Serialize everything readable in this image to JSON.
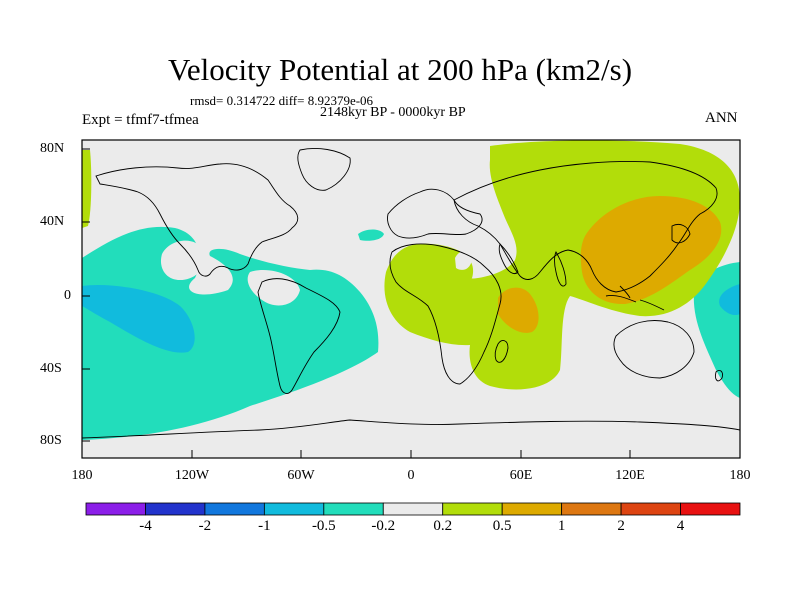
{
  "title": "Velocity Potential at 200 hPa (km2/s)",
  "stats_line": "rmsd= 0.314722 diff= 8.92379e-06",
  "period_label": "2148kyr BP - 0000kyr BP",
  "experiment_label": "Expt = tfmf7-tfmea",
  "season_label": "ANN",
  "axes": {
    "y_ticks": [
      "80N",
      "40N",
      "0",
      "40S",
      "80S"
    ],
    "x_ticks": [
      "180",
      "120W",
      "60W",
      "0",
      "60E",
      "120E",
      "180"
    ]
  },
  "colorbar": {
    "levels": [
      "-4",
      "-2",
      "-1",
      "-0.5",
      "-0.2",
      "0.2",
      "0.5",
      "1",
      "2",
      "4"
    ],
    "colors": [
      "#8b1ee8",
      "#2233cc",
      "#1177dd",
      "#11bbdd",
      "#22ddbb",
      "#ebebeb",
      "#b2dd0a",
      "#ddaa00",
      "#dd7711",
      "#dd4411",
      "#e81111"
    ]
  },
  "colors": {
    "background": "#ebebeb",
    "cool_light": "#22ddbb",
    "cool_mid": "#11bbdd",
    "warm_light": "#b2dd0a",
    "warm_mid": "#ddaa00"
  }
}
